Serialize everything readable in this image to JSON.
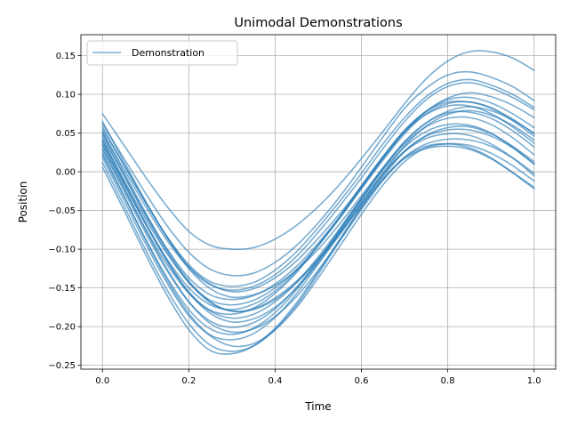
{
  "chart_data": {
    "type": "line",
    "title": "Unimodal Demonstrations",
    "xlabel": "Time",
    "ylabel": "Position",
    "xlim": [
      -0.05,
      1.05
    ],
    "ylim": [
      -0.255,
      0.177
    ],
    "xticks": [
      0.0,
      0.2,
      0.4,
      0.6,
      0.8,
      1.0
    ],
    "xtick_labels": [
      "0.0",
      "0.2",
      "0.4",
      "0.6",
      "0.8",
      "1.0"
    ],
    "yticks": [
      -0.25,
      -0.2,
      -0.15,
      -0.1,
      -0.05,
      0.0,
      0.05,
      0.1,
      0.15
    ],
    "ytick_labels": [
      "−0.25",
      "−0.20",
      "−0.15",
      "−0.10",
      "−0.05",
      "0.00",
      "0.05",
      "0.10",
      "0.15"
    ],
    "grid": true,
    "legend": {
      "position": "upper-left",
      "entries": [
        "Demonstration"
      ]
    },
    "line_color": "#1f77b4",
    "line_alpha": 0.6,
    "x": [
      0.0,
      0.05,
      0.1,
      0.15,
      0.2,
      0.25,
      0.3,
      0.35,
      0.4,
      0.45,
      0.5,
      0.55,
      0.6,
      0.65,
      0.7,
      0.75,
      0.8,
      0.85,
      0.9,
      0.95,
      1.0
    ],
    "series": [
      {
        "values": [
          0.075,
          0.034,
          -0.007,
          -0.045,
          -0.077,
          -0.095,
          -0.1,
          -0.098,
          -0.087,
          -0.069,
          -0.045,
          -0.016,
          0.017,
          0.052,
          0.088,
          0.12,
          0.143,
          0.155,
          0.155,
          0.147,
          0.131
        ]
      },
      {
        "values": [
          0.062,
          0.017,
          -0.028,
          -0.07,
          -0.104,
          -0.126,
          -0.134,
          -0.131,
          -0.117,
          -0.095,
          -0.066,
          -0.032,
          0.006,
          0.045,
          0.082,
          0.108,
          0.125,
          0.129,
          0.122,
          0.11,
          0.092
        ]
      },
      {
        "values": [
          0.055,
          0.008,
          -0.04,
          -0.084,
          -0.12,
          -0.142,
          -0.148,
          -0.143,
          -0.127,
          -0.103,
          -0.072,
          -0.038,
          -0.002,
          0.036,
          0.07,
          0.097,
          0.114,
          0.119,
          0.112,
          0.1,
          0.083
        ]
      },
      {
        "values": [
          0.05,
          0.003,
          -0.045,
          -0.089,
          -0.124,
          -0.146,
          -0.153,
          -0.148,
          -0.133,
          -0.109,
          -0.078,
          -0.044,
          -0.008,
          0.03,
          0.065,
          0.093,
          0.11,
          0.115,
          0.108,
          0.096,
          0.08
        ]
      },
      {
        "values": [
          0.058,
          0.009,
          -0.04,
          -0.085,
          -0.122,
          -0.145,
          -0.155,
          -0.151,
          -0.137,
          -0.115,
          -0.086,
          -0.054,
          -0.019,
          0.018,
          0.052,
          0.078,
          0.095,
          0.102,
          0.097,
          0.086,
          0.07
        ]
      },
      {
        "values": [
          0.045,
          -0.005,
          -0.055,
          -0.1,
          -0.137,
          -0.159,
          -0.165,
          -0.16,
          -0.145,
          -0.122,
          -0.092,
          -0.058,
          -0.021,
          0.017,
          0.052,
          0.078,
          0.093,
          0.096,
          0.089,
          0.075,
          0.057
        ]
      },
      {
        "values": [
          0.04,
          -0.011,
          -0.061,
          -0.106,
          -0.143,
          -0.166,
          -0.172,
          -0.166,
          -0.15,
          -0.126,
          -0.095,
          -0.06,
          -0.022,
          0.015,
          0.049,
          0.075,
          0.088,
          0.09,
          0.083,
          0.068,
          0.049
        ]
      },
      {
        "values": [
          0.035,
          -0.016,
          -0.067,
          -0.113,
          -0.15,
          -0.172,
          -0.178,
          -0.171,
          -0.154,
          -0.128,
          -0.095,
          -0.058,
          -0.018,
          0.02,
          0.054,
          0.078,
          0.09,
          0.09,
          0.082,
          0.066,
          0.046
        ]
      },
      {
        "values": [
          0.065,
          0.013,
          -0.038,
          -0.085,
          -0.125,
          -0.151,
          -0.162,
          -0.159,
          -0.147,
          -0.127,
          -0.1,
          -0.067,
          -0.031,
          0.005,
          0.038,
          0.063,
          0.078,
          0.084,
          0.079,
          0.067,
          0.05
        ]
      },
      {
        "values": [
          0.03,
          -0.022,
          -0.074,
          -0.12,
          -0.157,
          -0.179,
          -0.184,
          -0.176,
          -0.157,
          -0.13,
          -0.095,
          -0.058,
          -0.019,
          0.019,
          0.052,
          0.074,
          0.085,
          0.085,
          0.075,
          0.058,
          0.037
        ]
      },
      {
        "values": [
          0.048,
          -0.005,
          -0.057,
          -0.104,
          -0.143,
          -0.169,
          -0.18,
          -0.177,
          -0.163,
          -0.141,
          -0.112,
          -0.078,
          -0.04,
          -0.002,
          0.033,
          0.059,
          0.074,
          0.079,
          0.073,
          0.06,
          0.041
        ]
      },
      {
        "values": [
          0.038,
          -0.015,
          -0.068,
          -0.116,
          -0.155,
          -0.18,
          -0.189,
          -0.184,
          -0.168,
          -0.143,
          -0.11,
          -0.073,
          -0.034,
          0.005,
          0.039,
          0.063,
          0.076,
          0.077,
          0.069,
          0.053,
          0.032
        ]
      },
      {
        "values": [
          0.028,
          -0.025,
          -0.079,
          -0.128,
          -0.168,
          -0.193,
          -0.201,
          -0.195,
          -0.177,
          -0.149,
          -0.114,
          -0.075,
          -0.035,
          0.004,
          0.036,
          0.058,
          0.069,
          0.07,
          0.061,
          0.044,
          0.022
        ]
      },
      {
        "values": [
          0.052,
          -0.001,
          -0.053,
          -0.101,
          -0.141,
          -0.168,
          -0.18,
          -0.178,
          -0.165,
          -0.143,
          -0.114,
          -0.08,
          -0.043,
          -0.006,
          0.026,
          0.047,
          0.057,
          0.058,
          0.049,
          0.033,
          0.013
        ]
      },
      {
        "values": [
          0.042,
          -0.012,
          -0.066,
          -0.115,
          -0.156,
          -0.183,
          -0.194,
          -0.19,
          -0.175,
          -0.15,
          -0.118,
          -0.081,
          -0.042,
          -0.004,
          0.027,
          0.046,
          0.054,
          0.054,
          0.046,
          0.031,
          0.01
        ]
      },
      {
        "values": [
          0.022,
          -0.032,
          -0.087,
          -0.137,
          -0.178,
          -0.203,
          -0.21,
          -0.202,
          -0.182,
          -0.152,
          -0.115,
          -0.075,
          -0.035,
          0.002,
          0.032,
          0.052,
          0.061,
          0.06,
          0.05,
          0.032,
          0.01
        ]
      },
      {
        "values": [
          0.034,
          -0.02,
          -0.075,
          -0.126,
          -0.168,
          -0.196,
          -0.207,
          -0.203,
          -0.187,
          -0.161,
          -0.127,
          -0.089,
          -0.049,
          -0.011,
          0.019,
          0.036,
          0.042,
          0.041,
          0.033,
          0.018,
          -0.002
        ]
      },
      {
        "values": [
          0.018,
          -0.037,
          -0.093,
          -0.144,
          -0.186,
          -0.211,
          -0.217,
          -0.209,
          -0.188,
          -0.157,
          -0.119,
          -0.078,
          -0.038,
          -0.002,
          0.026,
          0.043,
          0.049,
          0.047,
          0.036,
          0.018,
          -0.005
        ]
      },
      {
        "values": [
          0.024,
          -0.031,
          -0.088,
          -0.14,
          -0.183,
          -0.212,
          -0.225,
          -0.222,
          -0.204,
          -0.175,
          -0.137,
          -0.096,
          -0.055,
          -0.017,
          0.013,
          0.031,
          0.036,
          0.034,
          0.024,
          0.008,
          -0.012
        ]
      },
      {
        "values": [
          0.012,
          -0.044,
          -0.101,
          -0.153,
          -0.196,
          -0.224,
          -0.232,
          -0.225,
          -0.204,
          -0.172,
          -0.132,
          -0.089,
          -0.046,
          -0.009,
          0.018,
          0.033,
          0.036,
          0.031,
          0.018,
          -0.001,
          -0.022
        ]
      },
      {
        "values": [
          0.006,
          -0.05,
          -0.107,
          -0.16,
          -0.204,
          -0.231,
          -0.235,
          -0.225,
          -0.202,
          -0.169,
          -0.129,
          -0.087,
          -0.046,
          -0.01,
          0.017,
          0.03,
          0.033,
          0.029,
          0.017,
          -0.001,
          -0.02
        ]
      }
    ]
  }
}
